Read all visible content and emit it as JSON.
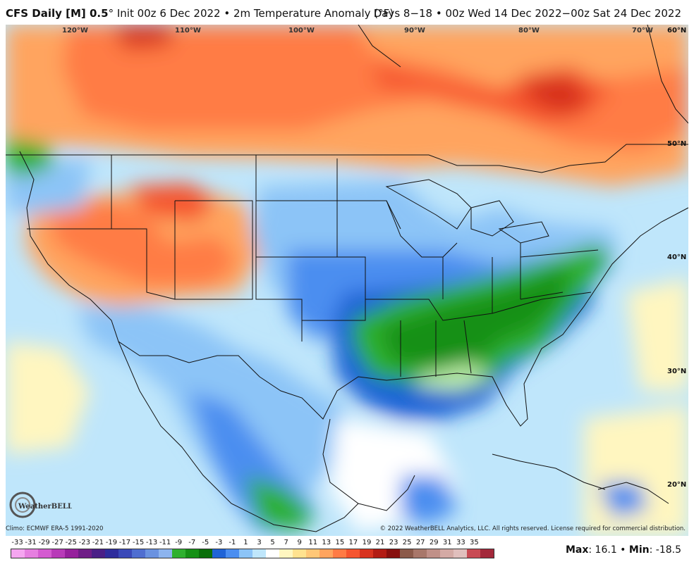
{
  "header": {
    "model": "CFS Daily [M] 0.5",
    "deg": "°",
    "init": " Init 00z 6 Dec 2022",
    "sep": " • ",
    "field": "2m Temperature Anomaly (°F)",
    "range": "Days 8−18 • 00z Wed 14 Dec 2022−00z Sat 24 Dec 2022"
  },
  "map": {
    "lon_labels": [
      "120°W",
      "110°W",
      "100°W",
      "90°W",
      "80°W",
      "70°W"
    ],
    "lat_labels": [
      "60°N",
      "50°N",
      "40°N",
      "30°N",
      "20°N"
    ]
  },
  "footer": {
    "climo": "Climo: ECMWF ERA-5 1991-2020",
    "copyright": "© 2022 WeatherBELL Analytics, LLC. All rights reserved. License required for commercial distribution.",
    "logo_text": "WeatherBELL"
  },
  "colorbar": {
    "labels": [
      "-33",
      "-31",
      "-29",
      "-27",
      "-25",
      "-23",
      "-21",
      "-19",
      "-17",
      "-15",
      "-13",
      "-11",
      "-9",
      "-7",
      "-5",
      "-3",
      "-1",
      "1",
      "3",
      "5",
      "7",
      "9",
      "11",
      "13",
      "15",
      "17",
      "19",
      "21",
      "23",
      "25",
      "27",
      "29",
      "31",
      "33",
      "35"
    ],
    "colors": [
      "#f5a6f0",
      "#e67fe0",
      "#d45bd0",
      "#b83bb8",
      "#96209c",
      "#6f1d86",
      "#4a1f86",
      "#2e2c9c",
      "#3a49b8",
      "#4f6ed0",
      "#6a92e0",
      "#8db4ee",
      "#2fb02f",
      "#159015",
      "#0a6e0a",
      "#1f63d6",
      "#4b8ef0",
      "#8cc4f7",
      "#bfe6fb",
      "#ffffff",
      "#fff6c0",
      "#ffe28f",
      "#ffc777",
      "#ffa45e",
      "#ff7b45",
      "#f5552f",
      "#d8331f",
      "#b21c14",
      "#87100e",
      "#8b5a4a",
      "#a8776a",
      "#c09088",
      "#d4aaa5",
      "#e0bfbd",
      "#c84a54",
      "#a3283a"
    ]
  },
  "stats": {
    "max_label": "Max",
    "max_value": ": 16.1",
    "sep": " • ",
    "min_label": "Min",
    "min_value": ": -18.5"
  }
}
